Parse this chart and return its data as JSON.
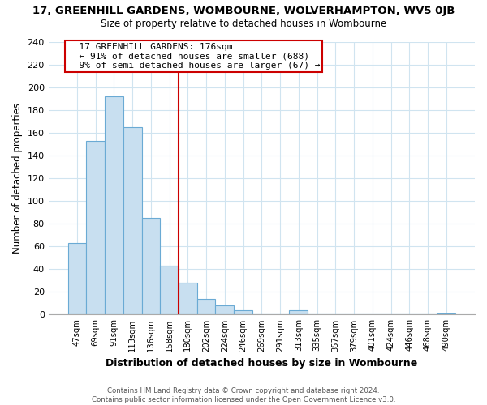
{
  "title": "17, GREENHILL GARDENS, WOMBOURNE, WOLVERHAMPTON, WV5 0JB",
  "subtitle": "Size of property relative to detached houses in Wombourne",
  "xlabel": "Distribution of detached houses by size in Wombourne",
  "ylabel": "Number of detached properties",
  "bar_labels": [
    "47sqm",
    "69sqm",
    "91sqm",
    "113sqm",
    "136sqm",
    "158sqm",
    "180sqm",
    "202sqm",
    "224sqm",
    "246sqm",
    "269sqm",
    "291sqm",
    "313sqm",
    "335sqm",
    "357sqm",
    "379sqm",
    "401sqm",
    "424sqm",
    "446sqm",
    "468sqm",
    "490sqm"
  ],
  "bar_values": [
    63,
    153,
    192,
    165,
    85,
    43,
    28,
    14,
    8,
    4,
    0,
    0,
    4,
    0,
    0,
    0,
    0,
    0,
    0,
    0,
    1
  ],
  "bar_color": "#c8dff0",
  "bar_edge_color": "#6aaad4",
  "marker_index": 6,
  "marker_line_color": "#cc0000",
  "annotation_title": "17 GREENHILL GARDENS: 176sqm",
  "annotation_line1": "← 91% of detached houses are smaller (688)",
  "annotation_line2": "9% of semi-detached houses are larger (67) →",
  "annotation_box_edge": "#cc0000",
  "ylim": [
    0,
    240
  ],
  "yticks": [
    0,
    20,
    40,
    60,
    80,
    100,
    120,
    140,
    160,
    180,
    200,
    220,
    240
  ],
  "footer_line1": "Contains HM Land Registry data © Crown copyright and database right 2024.",
  "footer_line2": "Contains public sector information licensed under the Open Government Licence v3.0.",
  "background_color": "#ffffff",
  "grid_color": "#d0e4f0"
}
